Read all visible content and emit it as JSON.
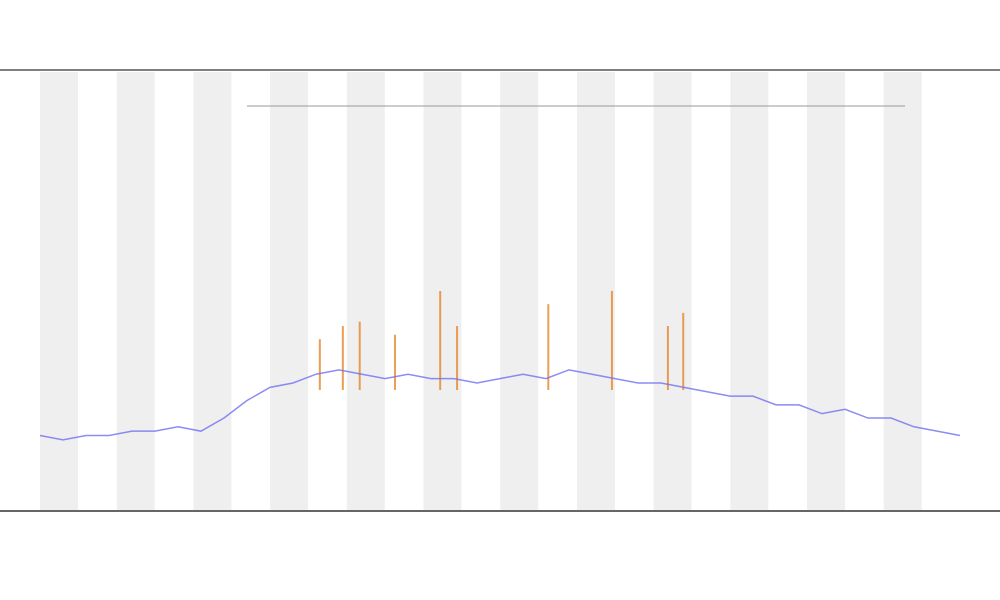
{
  "chart_data": {
    "type": "line",
    "x": [
      0,
      3,
      6,
      9,
      12,
      15,
      18,
      21,
      24,
      27,
      30,
      33,
      36,
      39,
      42,
      45,
      48,
      51,
      54,
      57,
      60,
      63,
      66,
      69,
      72,
      75,
      78,
      81,
      84,
      87,
      90,
      93,
      96,
      99,
      102,
      105,
      108,
      111,
      114,
      117,
      120
    ],
    "xlim": [
      0,
      120
    ],
    "ylim": [
      0,
      100
    ],
    "series": [
      {
        "color": "#6f6ff0",
        "mark": "line",
        "values": [
          17,
          16,
          17,
          17,
          18,
          18,
          19,
          18,
          21,
          25,
          28,
          29,
          31,
          32,
          31,
          30,
          31,
          30,
          30,
          29,
          30,
          31,
          30,
          32,
          31,
          30,
          29,
          29,
          28,
          27,
          26,
          26,
          24,
          24,
          22,
          23,
          21,
          21,
          19,
          18,
          17
        ]
      },
      {
        "color": "#e8862a",
        "mark": "spike",
        "x": [
          36.5,
          39.5,
          41.7,
          46.3,
          52.2,
          54.4,
          66.3,
          74.6,
          81.9,
          83.9
        ],
        "values": [
          39,
          42,
          43,
          40,
          50,
          42,
          47,
          50,
          42,
          45
        ]
      }
    ]
  }
}
